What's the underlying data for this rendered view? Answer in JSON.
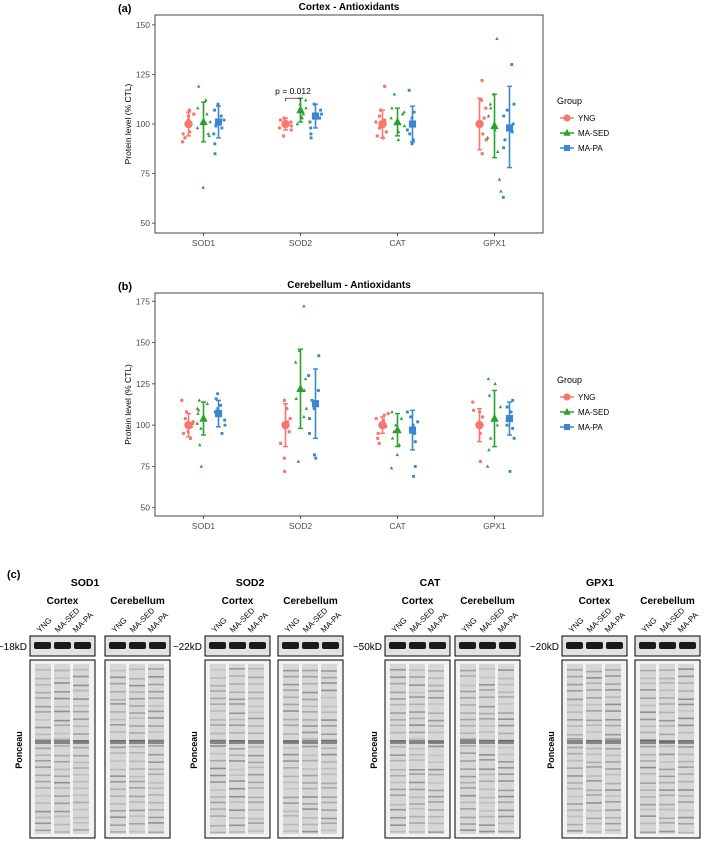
{
  "panels": [
    {
      "letter": "(a)"
    },
    {
      "letter": "(b)"
    },
    {
      "letter": "(c)"
    }
  ],
  "legend": {
    "title": "Group",
    "groups": [
      {
        "name": "YNG",
        "color": "#F8766D",
        "shape": "circle"
      },
      {
        "name": "MA-SED",
        "color": "#2CA02C",
        "shape": "triangle"
      },
      {
        "name": "MA-PA",
        "color": "#3A87CF",
        "shape": "square"
      }
    ]
  },
  "chart_data": [
    {
      "type": "scatter",
      "title": "Cortex - Antioxidants",
      "xlabel": "",
      "ylabel": "Protein level (% CTL)",
      "ylim": [
        45,
        155
      ],
      "yticks": [
        50,
        75,
        100,
        125,
        150
      ],
      "categories": [
        "SOD1",
        "SOD2",
        "CAT",
        "GPX1"
      ],
      "annotations": [
        {
          "text": "p = 0.012",
          "category": "SOD2",
          "between": [
            "YNG",
            "MA-SED"
          ],
          "y": 113
        }
      ],
      "series": [
        {
          "name": "YNG",
          "means": [
            100,
            100,
            100,
            100
          ],
          "sd": [
            [
              94,
              106
            ],
            [
              97,
              103
            ],
            [
              93,
              107
            ],
            [
              87,
              113
            ]
          ],
          "points": [
            [
              102,
              107,
              95,
              93,
              99,
              104,
              91,
              105,
              96
            ],
            [
              101,
              99,
              98,
              103,
              97,
              102,
              94,
              100
            ],
            [
              98,
              104,
              101,
              93,
              107,
              96,
              102,
              94,
              119
            ],
            [
              122,
              112,
              92,
              85,
              103,
              99,
              108,
              95
            ]
          ]
        },
        {
          "name": "MA-SED",
          "means": [
            101,
            107,
            101,
            99
          ],
          "sd": [
            [
              91,
              111
            ],
            [
              101,
              113
            ],
            [
              94,
              108
            ],
            [
              83,
              115
            ]
          ],
          "points": [
            [
              68,
              119,
              112,
              105,
              98,
              95,
              101,
              108,
              94
            ],
            [
              112,
              106,
              103,
              108,
              104,
              110,
              100,
              105
            ],
            [
              115,
              105,
              96,
              103,
              99,
              108,
              92,
              100,
              106
            ],
            [
              143,
              108,
              97,
              110,
              115,
              86,
              72,
              66,
              93,
              104
            ]
          ]
        },
        {
          "name": "MA-PA",
          "means": [
            101,
            104,
            100,
            98
          ],
          "sd": [
            [
              93,
              109
            ],
            [
              98,
              110
            ],
            [
              91,
              109
            ],
            [
              78,
              119
            ]
          ],
          "points": [
            [
              110,
              98,
              107,
              85,
              104,
              95,
              102,
              99,
              90
            ],
            [
              107,
              101,
              95,
              110,
              98,
              103,
              93,
              105
            ],
            [
              117,
              103,
              97,
              92,
              106,
              101,
              90,
              99,
              95
            ],
            [
              130,
              110,
              104,
              96,
              88,
              63,
              100,
              92,
              107
            ]
          ]
        }
      ]
    },
    {
      "type": "scatter",
      "title": "Cerebellum - Antioxidants",
      "xlabel": "",
      "ylabel": "Protein level (% CTL)",
      "ylim": [
        45,
        180
      ],
      "yticks": [
        50,
        75,
        100,
        125,
        150,
        175
      ],
      "categories": [
        "SOD1",
        "SOD2",
        "CAT",
        "GPX1"
      ],
      "annotations": [],
      "series": [
        {
          "name": "YNG",
          "means": [
            100,
            100,
            100,
            100
          ],
          "sd": [
            [
              93,
              107
            ],
            [
              87,
              113
            ],
            [
              95,
              105
            ],
            [
              90,
              110
            ]
          ],
          "points": [
            [
              108,
              96,
              92,
              104,
              99,
              101,
              95,
              115,
              102
            ],
            [
              96,
              104,
              110,
              115,
              89,
              80,
              72,
              102
            ],
            [
              92,
              95,
              101,
              103,
              106,
              104,
              99,
              89,
              107
            ],
            [
              78,
              95,
              108,
              105,
              109,
              100,
              114
            ]
          ]
        },
        {
          "name": "MA-SED",
          "means": [
            104,
            122,
            97,
            104
          ],
          "sd": [
            [
              94,
              114
            ],
            [
              98,
              146
            ],
            [
              87,
              107
            ],
            [
              87,
              121
            ]
          ],
          "points": [
            [
              75,
              110,
              115,
              113,
              98,
              107,
              101,
              88,
              109
            ],
            [
              172,
              145,
              138,
              110,
              121,
              105,
              78,
              128,
              116
            ],
            [
              92,
              104,
              108,
              74,
              96,
              100,
              88,
              82
            ],
            [
              125,
              118,
              128,
              92,
              100,
              75,
              111,
              85
            ]
          ]
        },
        {
          "name": "MA-PA",
          "means": [
            107,
            113,
            97,
            104
          ],
          "sd": [
            [
              99,
              115
            ],
            [
              92,
              134
            ],
            [
              85,
              109
            ],
            [
              94,
              114
            ]
          ],
          "points": [
            [
              116,
              112,
              95,
              108,
              103,
              119,
              100,
              110
            ],
            [
              142,
              130,
              121,
              82,
              110,
              95,
              115,
              104,
              80
            ],
            [
              108,
              105,
              95,
              69,
              102,
              90,
              100,
              75
            ],
            [
              72,
              115,
              108,
              98,
              111,
              103,
              92,
              100
            ]
          ]
        }
      ]
    }
  ],
  "blots": [
    {
      "target": "SOD1",
      "marker": "~18kD",
      "left_tissue": "Cortex",
      "right_tissue": "Cerebellum",
      "lanes": [
        "YNG",
        "MA-SED",
        "MA-PA"
      ],
      "stain": "Ponceau"
    },
    {
      "target": "SOD2",
      "marker": "~22kD",
      "left_tissue": "Cortex",
      "right_tissue": "Cerebellum",
      "lanes": [
        "YNG",
        "MA-SED",
        "MA-PA"
      ],
      "stain": "Ponceau"
    },
    {
      "target": "CAT",
      "marker": "~50kD",
      "left_tissue": "Cortex",
      "right_tissue": "Cerebellum",
      "lanes": [
        "YNG",
        "MA-SED",
        "MA-PA"
      ],
      "stain": "Ponceau"
    },
    {
      "target": "GPX1",
      "marker": "~20kD",
      "left_tissue": "Cortex",
      "right_tissue": "Cerebellum",
      "lanes": [
        "YNG",
        "MA-SED",
        "MA-PA"
      ],
      "stain": "Ponceau"
    }
  ]
}
